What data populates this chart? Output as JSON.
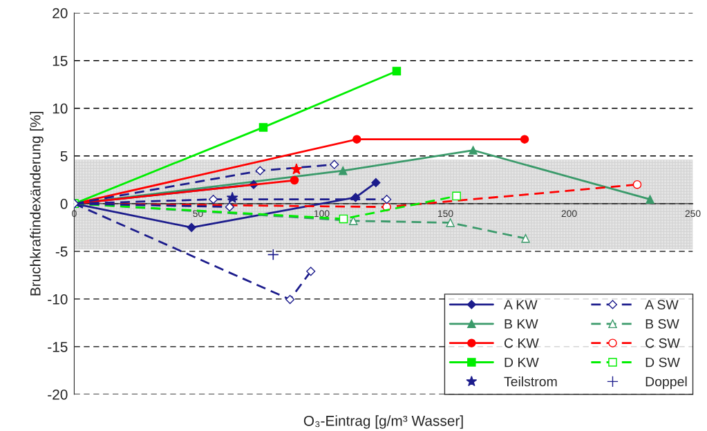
{
  "chart_data": {
    "type": "line",
    "xlabel": "O₃-Eintrag [g/m³ Wasser]",
    "ylabel": "Bruchkraftindexänderung [%]",
    "xlim": [
      0,
      250
    ],
    "xticks": [
      0,
      50,
      100,
      150,
      200,
      250
    ],
    "ylim": [
      -20,
      20
    ],
    "yticks": [
      -20,
      -15,
      -10,
      -5,
      0,
      5,
      10,
      15,
      20
    ],
    "grid": "y",
    "legend": "bottom right",
    "bands": [
      {
        "axis": "y",
        "from": -4.8,
        "to": 4.6,
        "color": "#e6e6e6"
      }
    ],
    "series": [
      {
        "name": "A KW",
        "color": "#1c1c8c",
        "x": [
          0,
          47.4,
          113.7,
          121.9
        ],
        "values": [
          0,
          -2.5,
          0.65,
          2.2
        ],
        "marker": "diamond",
        "line_style": "solid"
      },
      {
        "name": "A SW",
        "color": "#1c1c8c",
        "x": [
          0,
          75.1,
          105.1
        ],
        "values": [
          0,
          3.45,
          4.1
        ],
        "marker": "diamond",
        "line_style": "dashed"
      },
      {
        "name": "B KW",
        "color": "#3a9a6a",
        "x": [
          0,
          108.6,
          161.2,
          232.7
        ],
        "values": [
          0,
          3.45,
          5.6,
          0.45
        ],
        "marker": "triangle",
        "line_style": "solid"
      },
      {
        "name": "B SW",
        "color": "#3a9a6a",
        "x": [
          0,
          112.8,
          152,
          182.4
        ],
        "values": [
          0,
          -1.8,
          -2.0,
          -3.65
        ],
        "marker": "triangle",
        "line_style": "dashed"
      },
      {
        "name": "C KW",
        "color": "#ff0000",
        "x": [
          0,
          114.2,
          182
        ],
        "values": [
          0,
          6.75,
          6.75
        ],
        "marker": "circle",
        "line_style": "solid"
      },
      {
        "name": "C SW",
        "color": "#ff0000",
        "x": [
          0,
          126.3,
          227.5
        ],
        "values": [
          0,
          -0.35,
          2.0
        ],
        "marker": "circle",
        "line_style": "dashed"
      },
      {
        "name": "D KW",
        "color": "#00ee00",
        "x": [
          0,
          76.4,
          130.3
        ],
        "values": [
          0,
          8.0,
          13.9
        ],
        "marker": "square",
        "line_style": "solid"
      },
      {
        "name": "D SW",
        "color": "#00ee00",
        "x": [
          0,
          108.8,
          154.5
        ],
        "values": [
          0,
          -1.6,
          0.8
        ],
        "marker": "square",
        "line_style": "dashed"
      },
      {
        "name": "Teilstrom",
        "type": "scatter",
        "color": "#1c1c8c",
        "x": [
          63.9
        ],
        "values": [
          0.6
        ],
        "marker": "star"
      },
      {
        "name": "Doppel",
        "type": "scatter",
        "color": "#1c1c8c",
        "x": [
          80.4
        ],
        "values": [
          -5.35
        ],
        "marker": "cross"
      },
      {
        "color": "#1c1c8c",
        "x": [
          0,
          72.5
        ],
        "values": [
          0,
          2.0
        ],
        "marker": "diamond",
        "line_style": "solid"
      },
      {
        "color": "#1c1c8c",
        "x": [
          0,
          56.2,
          126.3
        ],
        "values": [
          0,
          0.45,
          0.45
        ],
        "marker": "diamond",
        "line_style": "dashed"
      },
      {
        "color": "#1c1c8c",
        "x": [
          0,
          62.8
        ],
        "values": [
          0,
          -0.35
        ],
        "marker": "diamond",
        "line_style": "dashed"
      },
      {
        "color": "#1c1c8c",
        "x": [
          0,
          87.2,
          95.6
        ],
        "values": [
          0,
          -10.05,
          -7.1
        ],
        "marker": "diamond",
        "line_style": "dashed"
      },
      {
        "color": "#ff0000",
        "x": [
          0,
          89.0
        ],
        "values": [
          0,
          2.45
        ],
        "marker": "circle",
        "line_style": "solid"
      },
      {
        "type": "scatter",
        "color": "#ff0000",
        "x": [
          89.8
        ],
        "values": [
          3.6
        ],
        "marker": "star"
      }
    ]
  }
}
